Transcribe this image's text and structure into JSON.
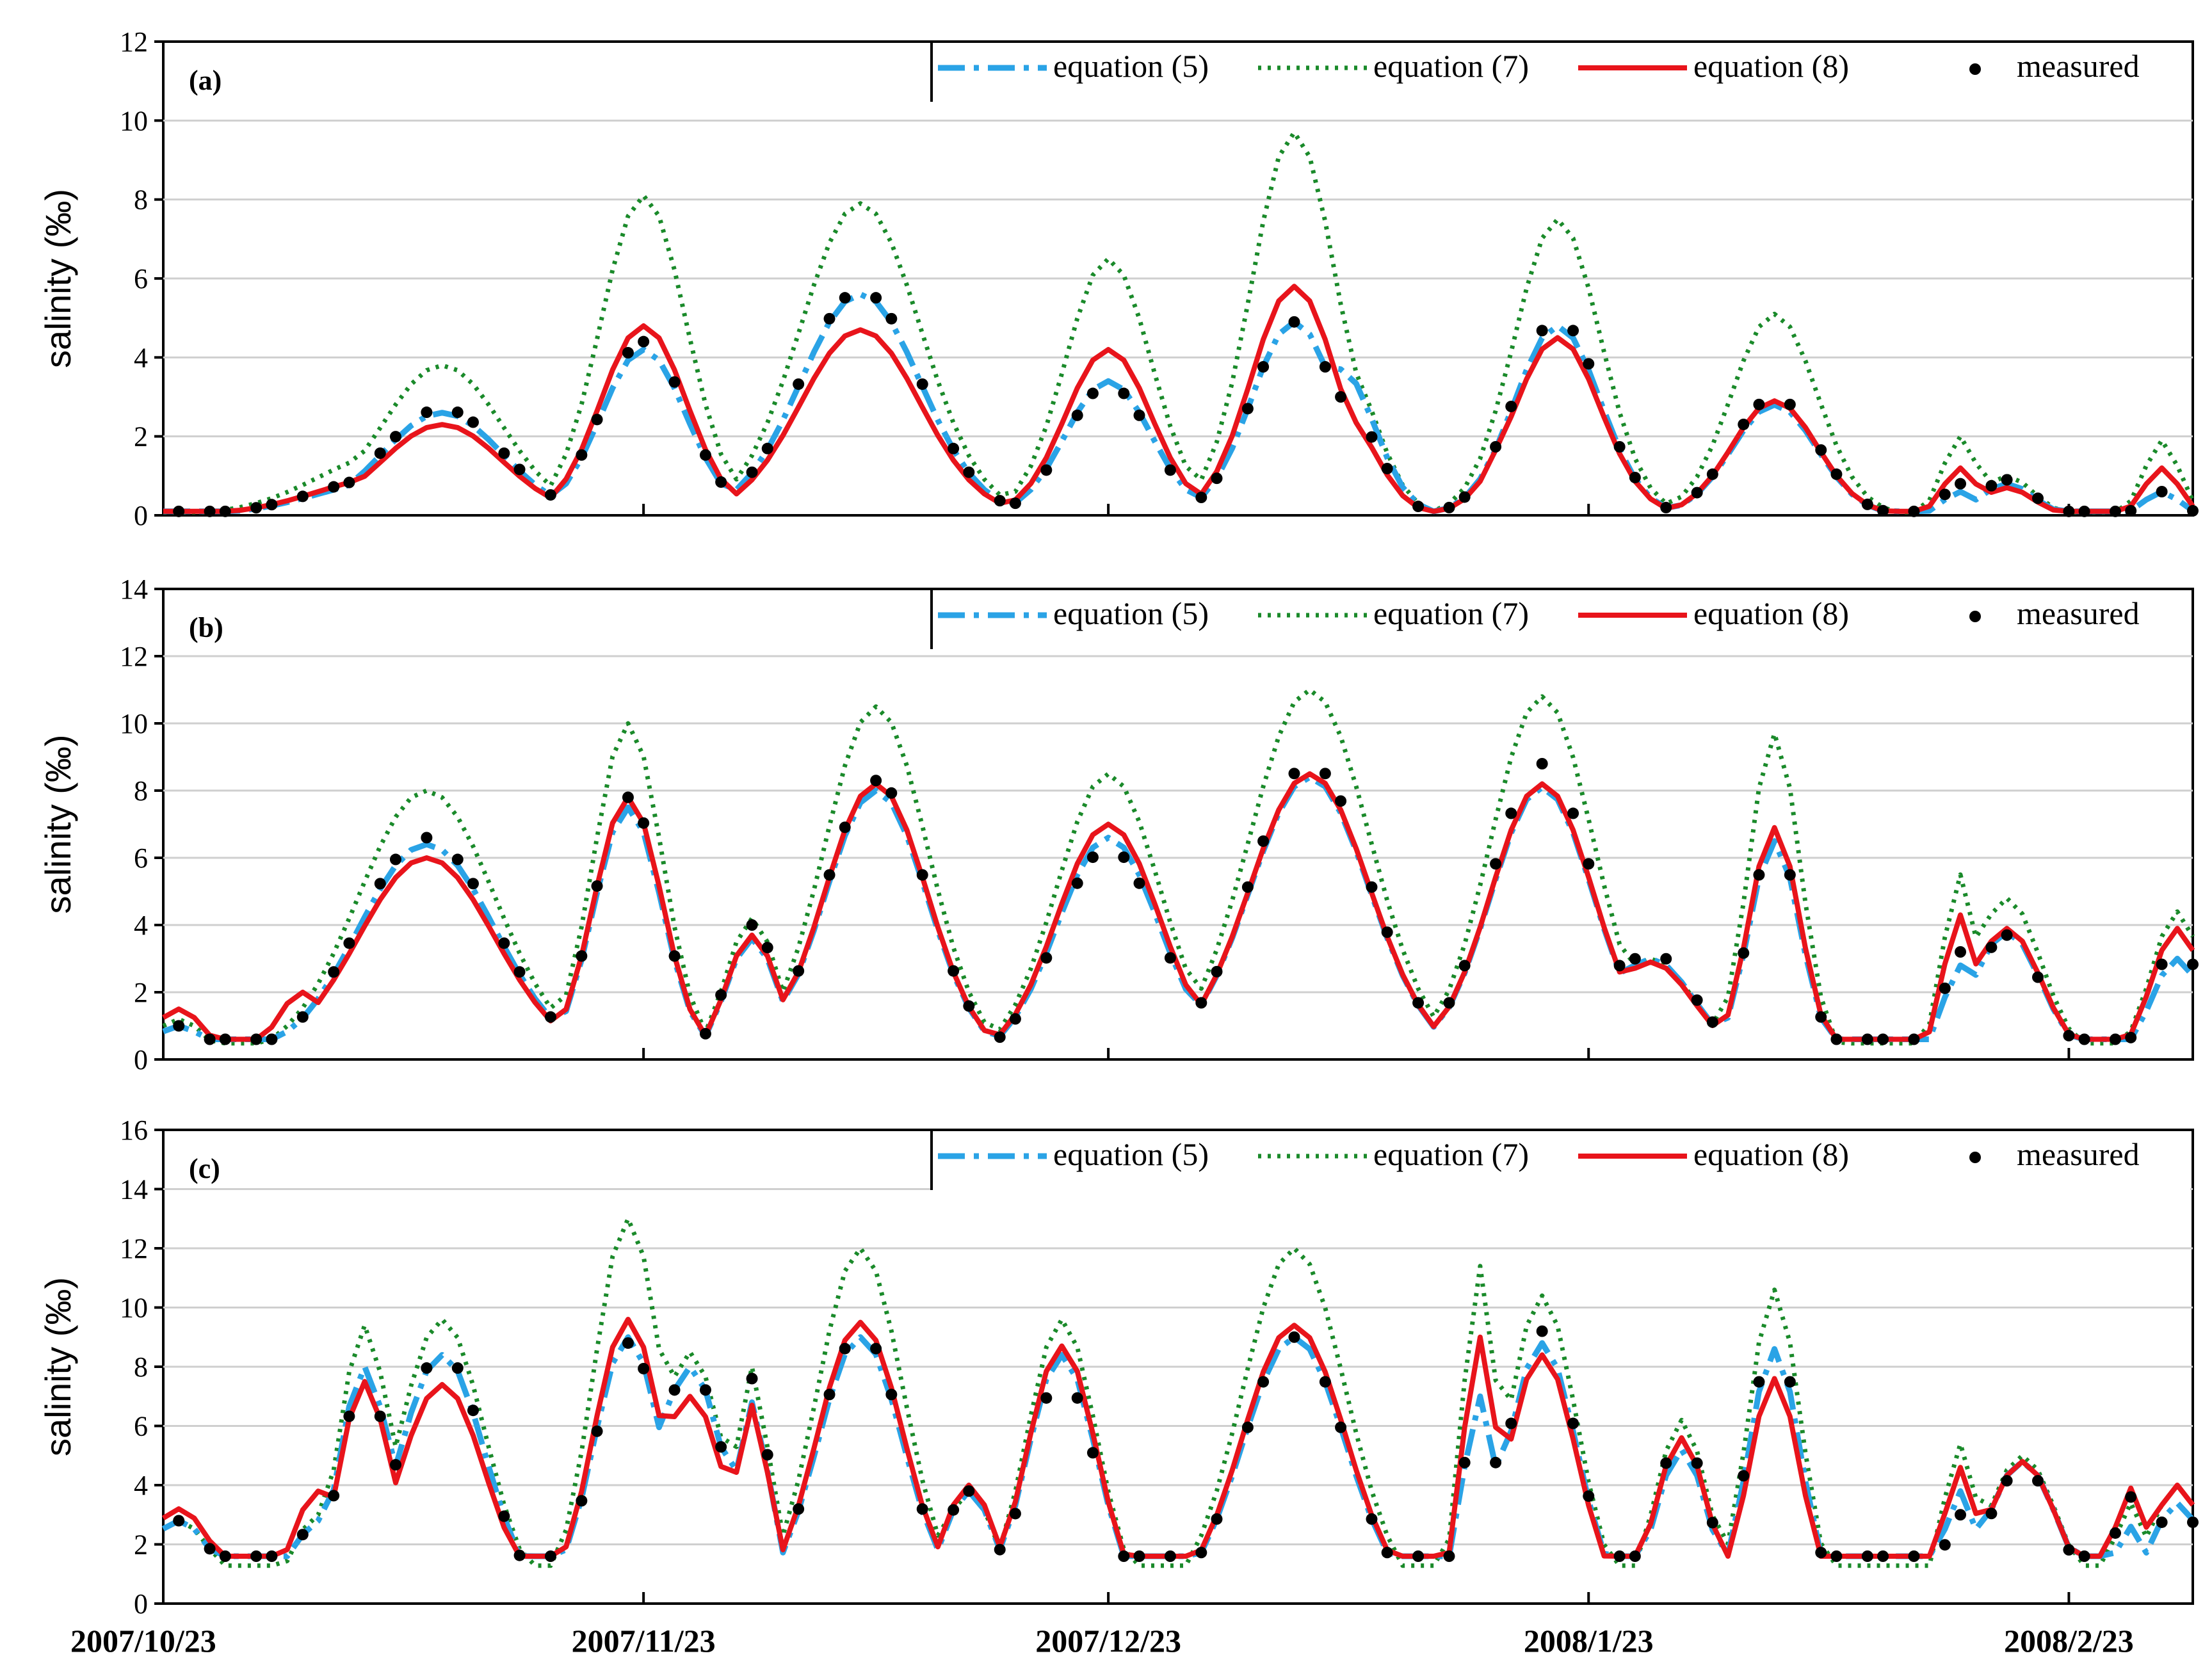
{
  "chart_data": {
    "type": "line",
    "shared": {
      "x_dates": [
        "2007/10/23",
        "2007/11/23",
        "2007/12/23",
        "2008/1/23",
        "2008/2/23"
      ],
      "x_start": "2007/10/23",
      "x_step_days": 1,
      "ylabel": "salinity (‰)",
      "legend": [
        {
          "key": "eq5",
          "label": "equation (5)",
          "style": "dash-dot",
          "color": "#2aa3e6"
        },
        {
          "key": "eq7",
          "label": "equation (7)",
          "style": "dotted",
          "color": "#1a8a2a"
        },
        {
          "key": "eq8",
          "label": "equation (8)",
          "style": "solid",
          "color": "#e8141b"
        },
        {
          "key": "meas",
          "label": "measured",
          "style": "marker",
          "color": "#000000"
        }
      ],
      "legend_position": "top-right",
      "grid": true
    },
    "panels": [
      {
        "tag": "(a)",
        "ylim": [
          0,
          12
        ],
        "yticks": [
          0,
          2,
          4,
          6,
          8,
          10,
          12
        ],
        "peaks": [
          {
            "day": 15,
            "w": 9,
            "eq8": 1.0,
            "eq5": 0.9,
            "eq7": 1.6,
            "meas": 1.0
          },
          {
            "day": 18,
            "w": 7,
            "eq8": 2.3,
            "eq5": 2.6,
            "eq7": 3.8,
            "meas": 2.7
          },
          {
            "day": 31,
            "w": 5,
            "eq8": 4.8,
            "eq5": 4.2,
            "eq7": 8.1,
            "meas": 4.4
          },
          {
            "day": 37,
            "w": 3,
            "eq8": 0.5,
            "eq5": 0.4,
            "eq7": 0.5,
            "meas": 0.5
          },
          {
            "day": 45,
            "w": 7,
            "eq8": 4.7,
            "eq5": 5.6,
            "eq7": 7.9,
            "meas": 5.7
          },
          {
            "day": 61,
            "w": 5,
            "eq8": 4.2,
            "eq5": 3.4,
            "eq7": 6.5,
            "meas": 3.3
          },
          {
            "day": 73,
            "w": 5,
            "eq8": 5.8,
            "eq5": 4.9,
            "eq7": 9.7,
            "meas": 4.9
          },
          {
            "day": 76,
            "w": 4,
            "eq8": 2.6,
            "eq5": 3.7,
            "eq7": 4.0,
            "meas": 3.0
          },
          {
            "day": 87,
            "w": 2,
            "eq8": 2.5,
            "eq5": 2.2,
            "eq7": 4.0,
            "meas": 2.3
          },
          {
            "day": 90,
            "w": 5,
            "eq8": 4.5,
            "eq5": 4.8,
            "eq7": 7.5,
            "meas": 5.0
          },
          {
            "day": 104,
            "w": 5,
            "eq8": 2.9,
            "eq5": 2.8,
            "eq7": 5.1,
            "meas": 3.0
          },
          {
            "day": 116,
            "w": 2,
            "eq8": 1.2,
            "eq5": 0.6,
            "eq7": 2.0,
            "meas": 0.8
          },
          {
            "day": 119,
            "w": 3,
            "eq8": 0.7,
            "eq5": 0.8,
            "eq7": 1.0,
            "meas": 0.9
          },
          {
            "day": 129,
            "w": 2,
            "eq8": 1.2,
            "eq5": 0.6,
            "eq7": 1.9,
            "meas": 0.6
          }
        ],
        "base": 0.1
      },
      {
        "tag": "(b)",
        "ylim": [
          0,
          14
        ],
        "yticks": [
          0,
          2,
          4,
          6,
          8,
          10,
          12,
          14
        ],
        "peaks": [
          {
            "day": 1,
            "w": 3,
            "eq8": 1.5,
            "eq5": 1.0,
            "eq7": 1.2,
            "meas": 1.0
          },
          {
            "day": 9,
            "w": 3,
            "eq8": 2.0,
            "eq5": 1.0,
            "eq7": 1.2,
            "meas": 1.2
          },
          {
            "day": 17,
            "w": 8,
            "eq8": 6.0,
            "eq5": 6.4,
            "eq7": 8.0,
            "meas": 6.6
          },
          {
            "day": 30,
            "w": 4,
            "eq8": 7.8,
            "eq5": 7.5,
            "eq7": 10.0,
            "meas": 7.8
          },
          {
            "day": 38,
            "w": 3,
            "eq8": 3.7,
            "eq5": 3.6,
            "eq7": 4.2,
            "meas": 4.0
          },
          {
            "day": 46,
            "w": 6,
            "eq8": 8.2,
            "eq5": 8.0,
            "eq7": 10.5,
            "meas": 8.3
          },
          {
            "day": 61,
            "w": 6,
            "eq8": 7.0,
            "eq5": 6.6,
            "eq7": 8.5,
            "meas": 6.3
          },
          {
            "day": 74,
            "w": 7,
            "eq8": 8.5,
            "eq5": 8.4,
            "eq7": 11.0,
            "meas": 8.8
          },
          {
            "day": 89,
            "w": 6,
            "eq8": 8.2,
            "eq5": 8.1,
            "eq7": 10.8,
            "meas": 8.8
          },
          {
            "day": 96,
            "w": 5,
            "eq8": 2.9,
            "eq5": 3.0,
            "eq7": 3.0,
            "meas": 3.2
          },
          {
            "day": 104,
            "w": 3,
            "eq8": 6.9,
            "eq5": 6.5,
            "eq7": 9.7,
            "meas": 6.6
          },
          {
            "day": 116,
            "w": 2,
            "eq8": 4.3,
            "eq5": 2.8,
            "eq7": 5.5,
            "meas": 3.2
          },
          {
            "day": 119,
            "w": 4,
            "eq8": 3.9,
            "eq5": 3.8,
            "eq7": 4.8,
            "meas": 3.7
          },
          {
            "day": 130,
            "w": 3,
            "eq8": 3.9,
            "eq5": 3.0,
            "eq7": 4.4,
            "meas": 3.4
          }
        ],
        "base": 0.6
      },
      {
        "tag": "(c)",
        "ylim": [
          0,
          16
        ],
        "yticks": [
          0,
          2,
          4,
          6,
          8,
          10,
          12,
          14,
          16
        ],
        "peaks": [
          {
            "day": 1,
            "w": 4,
            "eq8": 3.2,
            "eq5": 2.8,
            "eq7": 2.8,
            "meas": 2.8
          },
          {
            "day": 10,
            "w": 3,
            "eq8": 3.8,
            "eq5": 2.8,
            "eq7": 3.0,
            "meas": 2.8
          },
          {
            "day": 13,
            "w": 3,
            "eq8": 7.5,
            "eq5": 8.0,
            "eq7": 9.4,
            "meas": 7.6
          },
          {
            "day": 18,
            "w": 5,
            "eq8": 7.4,
            "eq5": 8.4,
            "eq7": 9.6,
            "meas": 8.5
          },
          {
            "day": 28,
            "w": 3,
            "eq8": 4.0,
            "eq5": 3.8,
            "eq7": 4.0,
            "meas": 3.8
          },
          {
            "day": 30,
            "w": 4,
            "eq8": 9.6,
            "eq5": 9.0,
            "eq7": 13.0,
            "meas": 8.8
          },
          {
            "day": 34,
            "w": 4,
            "eq8": 7.0,
            "eq5": 8.0,
            "eq7": 8.5,
            "meas": 8.0
          },
          {
            "day": 38,
            "w": 2,
            "eq8": 6.7,
            "eq5": 6.8,
            "eq7": 8.0,
            "meas": 7.6
          },
          {
            "day": 45,
            "w": 5,
            "eq8": 9.5,
            "eq5": 9.0,
            "eq7": 12.0,
            "meas": 9.2
          },
          {
            "day": 52,
            "w": 3,
            "eq8": 4.0,
            "eq5": 3.8,
            "eq7": 3.8,
            "meas": 3.8
          },
          {
            "day": 58,
            "w": 4,
            "eq8": 8.7,
            "eq5": 8.4,
            "eq7": 9.6,
            "meas": 7.7
          },
          {
            "day": 73,
            "w": 6,
            "eq8": 9.4,
            "eq5": 9.0,
            "eq7": 12.0,
            "meas": 9.0
          },
          {
            "day": 85,
            "w": 2,
            "eq8": 9.0,
            "eq5": 7.0,
            "eq7": 11.4,
            "meas": 7.2
          },
          {
            "day": 89,
            "w": 4,
            "eq8": 8.4,
            "eq5": 8.8,
            "eq7": 10.4,
            "meas": 9.2
          },
          {
            "day": 98,
            "w": 3,
            "eq8": 5.6,
            "eq5": 5.2,
            "eq7": 6.2,
            "meas": 5.7
          },
          {
            "day": 104,
            "w": 3,
            "eq8": 7.6,
            "eq5": 8.6,
            "eq7": 10.6,
            "meas": 9.0
          },
          {
            "day": 116,
            "w": 2,
            "eq8": 4.6,
            "eq5": 3.8,
            "eq7": 5.4,
            "meas": 3.0
          },
          {
            "day": 120,
            "w": 4,
            "eq8": 4.8,
            "eq5": 4.8,
            "eq7": 5.0,
            "meas": 4.6
          },
          {
            "day": 127,
            "w": 2,
            "eq8": 3.9,
            "eq5": 2.6,
            "eq7": 3.4,
            "meas": 3.6
          },
          {
            "day": 130,
            "w": 3,
            "eq8": 4.0,
            "eq5": 3.4,
            "eq7": 4.0,
            "meas": 3.3
          }
        ],
        "base": 1.6
      }
    ]
  }
}
